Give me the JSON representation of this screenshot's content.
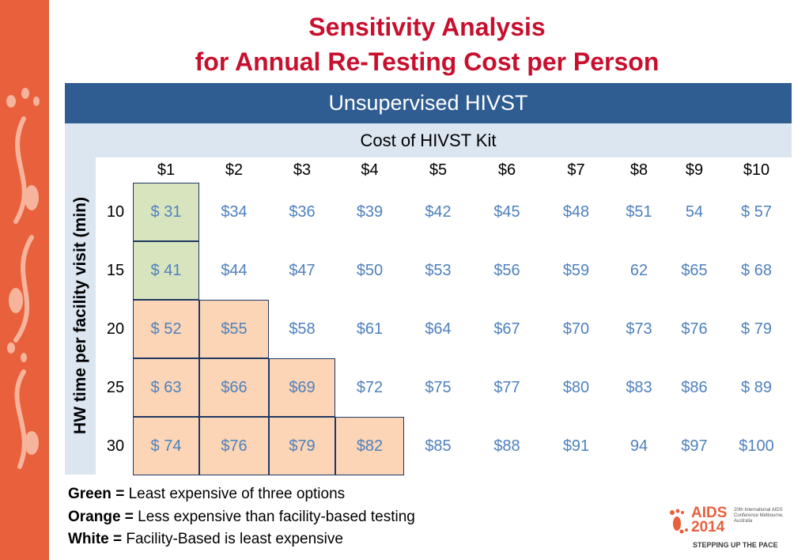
{
  "title": {
    "line1": "Sensitivity Analysis",
    "line2": "for Annual Re-Testing Cost per Person"
  },
  "table": {
    "header": "Unsupervised HIVST",
    "subheader": "Cost of HIVST Kit",
    "row_axis_label": "HW time per facility visit (min)",
    "columns": [
      "$1",
      "$2",
      "$3",
      "$4",
      "$5",
      "$6",
      "$7",
      "$8",
      "$9",
      "$10"
    ],
    "rows": [
      {
        "label": "10",
        "cells": [
          "$ 31",
          "$34",
          "$36",
          "$39",
          "$42",
          "$45",
          "$48",
          "$51",
          "54",
          "$ 57"
        ],
        "highlight": [
          "green",
          "none",
          "none",
          "none",
          "none",
          "none",
          "none",
          "none",
          "none",
          "none"
        ]
      },
      {
        "label": "15",
        "cells": [
          "$ 41",
          "$44",
          "$47",
          "$50",
          "$53",
          "$56",
          "$59",
          "62",
          "$65",
          "$ 68"
        ],
        "highlight": [
          "green",
          "none",
          "none",
          "none",
          "none",
          "none",
          "none",
          "none",
          "none",
          "none"
        ]
      },
      {
        "label": "20",
        "cells": [
          "$ 52",
          "$55",
          "$58",
          "$61",
          "$64",
          "$67",
          "$70",
          "$73",
          "$76",
          "$ 79"
        ],
        "highlight": [
          "orange",
          "orange",
          "none",
          "none",
          "none",
          "none",
          "none",
          "none",
          "none",
          "none"
        ]
      },
      {
        "label": "25",
        "cells": [
          "$ 63",
          "$66",
          "$69",
          "$72",
          "$75",
          "$77",
          "$80",
          "$83",
          "$86",
          "$ 89"
        ],
        "highlight": [
          "orange",
          "orange",
          "orange",
          "none",
          "none",
          "none",
          "none",
          "none",
          "none",
          "none"
        ]
      },
      {
        "label": "30",
        "cells": [
          "$ 74",
          "$76",
          "$79",
          "$82",
          "$85",
          "$88",
          "$91",
          "94",
          "$97",
          "$100"
        ],
        "highlight": [
          "orange",
          "orange",
          "orange",
          "orange",
          "none",
          "none",
          "none",
          "none",
          "none",
          "none"
        ]
      }
    ]
  },
  "legend": [
    {
      "key": "Green =",
      "text": " Least expensive of three options"
    },
    {
      "key": "Orange =",
      "text": " Less expensive than facility-based testing"
    },
    {
      "key": "White =",
      "text": " Facility-Based is least expensive"
    }
  ],
  "logo": {
    "brand": "AIDS",
    "year": "2014",
    "conference": "20th International AIDS Conference Melbourne, Australia",
    "tagline": "STEPPING UP THE PACE"
  },
  "colors": {
    "title": "#c8102e",
    "header": "#2f5d91",
    "subheader": "#dce6f1",
    "green": "#d7e4bd",
    "orange": "#fbd5b5",
    "value": "#4f81bd",
    "sidebar": "#e8603c"
  }
}
